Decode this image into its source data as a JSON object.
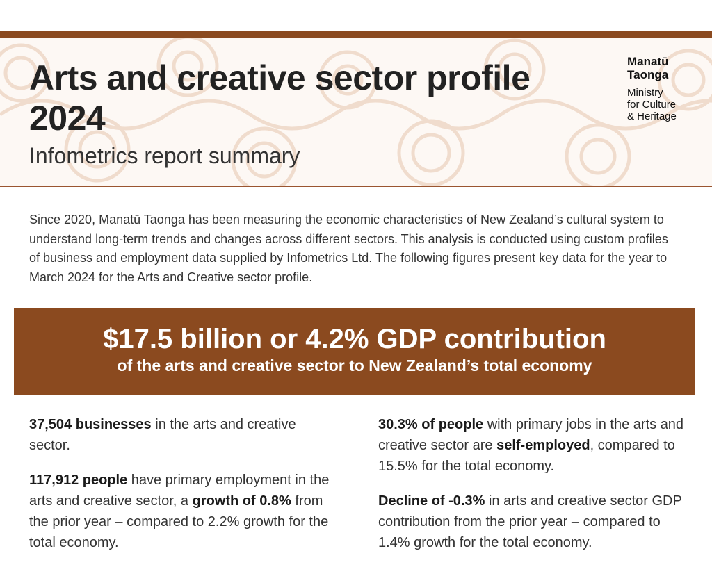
{
  "header": {
    "title": "Arts and creative sector profile 2024",
    "subtitle": "Infometrics report summary",
    "logo": {
      "name_line1": "Manatū",
      "name_line2": "Taonga",
      "sub_line1": "Ministry",
      "sub_line2": "for Culture",
      "sub_line3": "& Heritage"
    }
  },
  "intro": "Since 2020, Manatū Taonga has been measuring the economic characteristics of New Zealand’s cultural system to understand long-term trends and changes across different sectors. This analysis is conducted using custom profiles of business and employment data supplied by Infometrics Ltd. The following figures present key data for the year to March 2024 for the Arts and Creative sector profile.",
  "banner": {
    "headline": "$17.5 billion or 4.2% GDP contribution",
    "subline": "of the arts and creative sector to New Zealand’s total economy"
  },
  "facts_left": {
    "businesses": {
      "bold": "37,504 businesses",
      "text": " in the arts and creative sector."
    },
    "people": {
      "bold": "117,912 people",
      "text1": " have primary employment in the arts and creative sector, a ",
      "bold2": "growth of 0.8%",
      "text2": " from the prior year – compared to 2.2% growth for the total economy."
    }
  },
  "facts_right": {
    "self_employed": {
      "bold": "30.3% of people",
      "text1": " with primary jobs in the arts and creative sector are ",
      "bold2": "self-employed",
      "text2": ", compared to 15.5% for the total economy."
    },
    "decline": {
      "bold": "Decline of -0.3%",
      "text": " in arts and creative sector GDP contribution from the prior year – compared to 1.4% growth for the total economy."
    }
  },
  "colors": {
    "accent": "#8b4a1f",
    "pattern": "#f0dccd",
    "header_bg": "#fdf8f4"
  }
}
